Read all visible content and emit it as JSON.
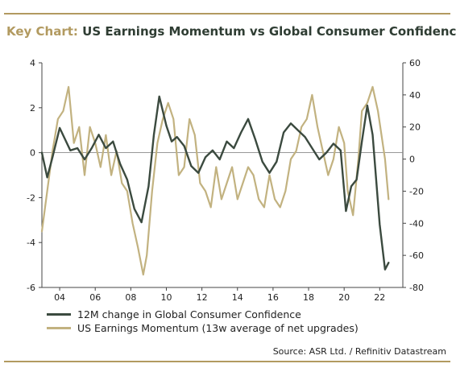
{
  "title": {
    "prefix": "Key Chart:",
    "main": "US Earnings Momentum vs Global Consumer Confidence"
  },
  "source": "Source: ASR Ltd. / Refinitiv Datastream",
  "colors": {
    "consumer_confidence": "#3b4a3f",
    "earnings_momentum": "#c2b280",
    "accent": "#b29a60"
  },
  "chart_data": {
    "type": "line",
    "x_ticks": [
      "04",
      "06",
      "08",
      "10",
      "12",
      "14",
      "16",
      "18",
      "20",
      "22"
    ],
    "left_axis": {
      "ylim": [
        -6,
        4
      ],
      "ticks": [
        "-6",
        "-4",
        "-2",
        "0",
        "2",
        "4"
      ]
    },
    "right_axis": {
      "ylim": [
        -80,
        60
      ],
      "ticks": [
        "-80",
        "-60",
        "-40",
        "-20",
        "0",
        "20",
        "40",
        "60"
      ]
    },
    "zero_line": true,
    "legend_position": "bottom",
    "series": [
      {
        "name": "12M change in Global Consumer Confidence",
        "axis": "left",
        "x": [
          2003.0,
          2003.3,
          2003.6,
          2004.0,
          2004.3,
          2004.6,
          2005.0,
          2005.4,
          2005.8,
          2006.2,
          2006.6,
          2007.0,
          2007.4,
          2007.8,
          2008.2,
          2008.6,
          2009.0,
          2009.3,
          2009.6,
          2010.0,
          2010.3,
          2010.6,
          2011.0,
          2011.4,
          2011.8,
          2012.2,
          2012.6,
          2013.0,
          2013.4,
          2013.8,
          2014.2,
          2014.6,
          2015.0,
          2015.4,
          2015.8,
          2016.2,
          2016.6,
          2017.0,
          2017.4,
          2017.8,
          2018.2,
          2018.6,
          2019.0,
          2019.4,
          2019.8,
          2020.1,
          2020.4,
          2020.7,
          2021.0,
          2021.3,
          2021.6,
          2022.0,
          2022.3,
          2022.5
        ],
        "values": [
          0.0,
          -1.1,
          -0.2,
          1.1,
          0.6,
          0.1,
          0.2,
          -0.3,
          0.2,
          0.8,
          0.2,
          0.5,
          -0.5,
          -1.2,
          -2.5,
          -3.1,
          -1.5,
          0.8,
          2.5,
          1.2,
          0.5,
          0.7,
          0.3,
          -0.6,
          -0.9,
          -0.2,
          0.1,
          -0.3,
          0.5,
          0.2,
          0.9,
          1.5,
          0.6,
          -0.4,
          -0.9,
          -0.4,
          0.9,
          1.3,
          1.0,
          0.7,
          0.2,
          -0.3,
          0.0,
          0.4,
          0.1,
          -2.6,
          -1.5,
          -1.2,
          0.5,
          2.1,
          0.8,
          -3.2,
          -5.2,
          -4.9
        ]
      },
      {
        "name": "US Earnings Momentum (13w average of net upgrades)",
        "axis": "right",
        "x": [
          2003.0,
          2003.3,
          2003.6,
          2003.9,
          2004.2,
          2004.5,
          2004.8,
          2005.1,
          2005.4,
          2005.7,
          2006.0,
          2006.3,
          2006.6,
          2006.9,
          2007.2,
          2007.5,
          2007.8,
          2008.1,
          2008.4,
          2008.7,
          2008.9,
          2009.2,
          2009.5,
          2009.8,
          2010.1,
          2010.4,
          2010.7,
          2011.0,
          2011.3,
          2011.6,
          2011.9,
          2012.2,
          2012.5,
          2012.8,
          2013.1,
          2013.4,
          2013.7,
          2014.0,
          2014.3,
          2014.6,
          2014.9,
          2015.2,
          2015.5,
          2015.8,
          2016.1,
          2016.4,
          2016.7,
          2017.0,
          2017.3,
          2017.6,
          2017.9,
          2018.2,
          2018.5,
          2018.8,
          2019.1,
          2019.4,
          2019.7,
          2020.0,
          2020.2,
          2020.5,
          2020.8,
          2021.0,
          2021.3,
          2021.6,
          2021.9,
          2022.1,
          2022.3,
          2022.5
        ],
        "values": [
          -45,
          -20,
          5,
          25,
          30,
          45,
          10,
          20,
          -10,
          20,
          10,
          -5,
          15,
          -10,
          5,
          -15,
          -20,
          -40,
          -55,
          -72,
          -60,
          -20,
          10,
          25,
          35,
          25,
          -10,
          -5,
          25,
          15,
          -15,
          -20,
          -30,
          -5,
          -25,
          -15,
          -5,
          -25,
          -15,
          -5,
          -10,
          -25,
          -30,
          -10,
          -25,
          -30,
          -20,
          0,
          5,
          20,
          25,
          40,
          20,
          5,
          -10,
          0,
          20,
          10,
          -20,
          -35,
          0,
          30,
          35,
          45,
          30,
          15,
          0,
          -25
        ]
      }
    ]
  }
}
